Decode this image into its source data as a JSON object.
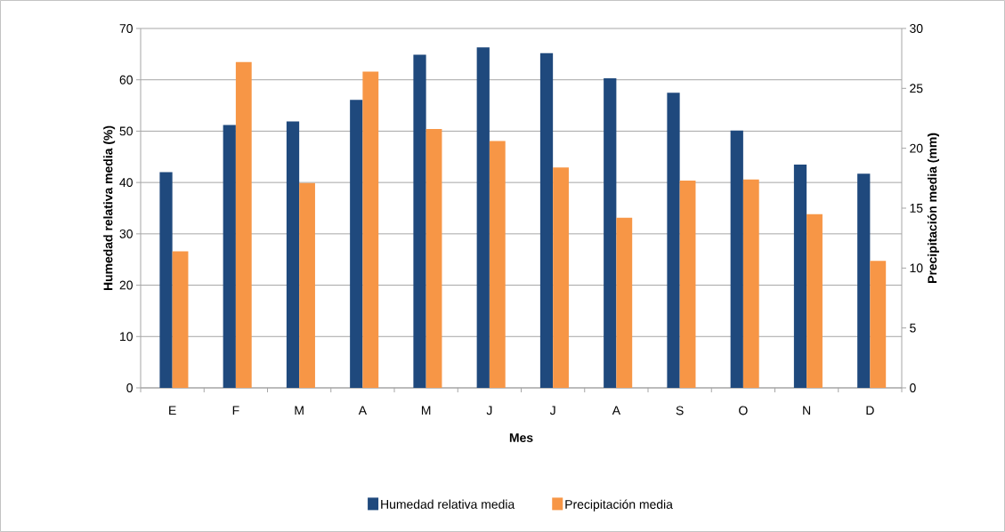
{
  "chart_data": {
    "type": "bar",
    "xlabel": "Mes",
    "ylabel": "Humedad relativa media (%)",
    "y2label": "Precipitación media (mm)",
    "categories": [
      "E",
      "F",
      "M",
      "A",
      "M",
      "J",
      "J",
      "A",
      "S",
      "O",
      "N",
      "D"
    ],
    "series": [
      {
        "name": "Humedad relativa media",
        "color": "#1f497d",
        "values": [
          42.0,
          51.2,
          51.9,
          56.1,
          64.9,
          66.3,
          65.2,
          60.3,
          57.5,
          50.1,
          43.5,
          41.7
        ]
      },
      {
        "name": "Precipitación media",
        "color": "#f79646",
        "axis": "y2",
        "values": [
          11.4,
          27.2,
          17.1,
          26.4,
          21.6,
          20.6,
          18.4,
          14.2,
          17.3,
          17.4,
          14.5,
          10.6
        ]
      }
    ],
    "ylim": [
      0,
      70
    ],
    "yticks": [
      0,
      10,
      20,
      30,
      40,
      50,
      60,
      70
    ],
    "y2lim": [
      0,
      30
    ],
    "y2ticks": [
      0,
      5,
      10,
      15,
      20,
      25,
      30
    ],
    "grid": "y",
    "legend": "bottom"
  }
}
